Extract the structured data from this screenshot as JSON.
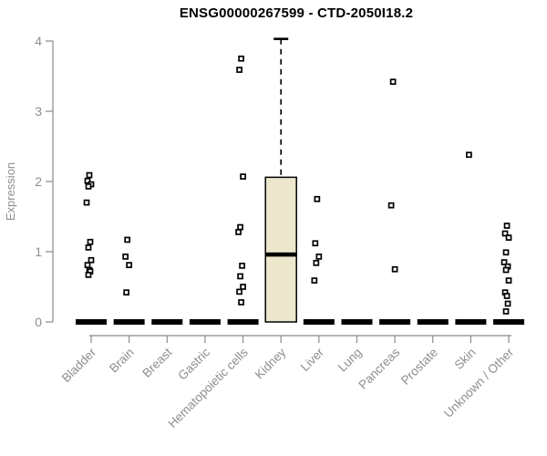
{
  "chart_data": {
    "type": "boxplot",
    "title": "ENSG00000267599 - CTD-2050I18.2",
    "ylabel": "Expression",
    "xlabel": "",
    "ylim": [
      0,
      4
    ],
    "yticks": [
      0,
      1,
      2,
      3,
      4
    ],
    "grid": false,
    "legend": false,
    "categories": [
      "Bladder",
      "Brain",
      "Breast",
      "Gastric",
      "Hematopoietic cells",
      "Kidney",
      "Liver",
      "Lung",
      "Pancreas",
      "Prostate",
      "Skin",
      "Unknown / Other"
    ],
    "boxes": [
      {
        "category": "Bladder",
        "q1": 0,
        "median": 0,
        "q3": 0,
        "whisker_low": 0,
        "whisker_high": 0,
        "points": [
          2.09,
          2.01,
          1.96,
          1.93,
          1.7,
          1.14,
          1.06,
          0.88,
          0.81,
          0.74,
          0.72,
          0.67
        ]
      },
      {
        "category": "Brain",
        "q1": 0,
        "median": 0,
        "q3": 0,
        "whisker_low": 0,
        "whisker_high": 0,
        "points": [
          1.17,
          0.93,
          0.81,
          0.42
        ]
      },
      {
        "category": "Breast",
        "q1": 0,
        "median": 0,
        "q3": 0,
        "whisker_low": 0,
        "whisker_high": 0,
        "points": []
      },
      {
        "category": "Gastric",
        "q1": 0,
        "median": 0,
        "q3": 0,
        "whisker_low": 0,
        "whisker_high": 0,
        "points": []
      },
      {
        "category": "Hematopoietic cells",
        "q1": 0,
        "median": 0,
        "q3": 0,
        "whisker_low": 0,
        "whisker_high": 0,
        "points": [
          3.75,
          3.59,
          2.07,
          1.35,
          1.28,
          0.8,
          0.65,
          0.5,
          0.43,
          0.28
        ]
      },
      {
        "category": "Kidney",
        "q1": 0,
        "median": 0.96,
        "q3": 2.06,
        "whisker_low": 0,
        "whisker_high": 4.03,
        "points": []
      },
      {
        "category": "Liver",
        "q1": 0,
        "median": 0,
        "q3": 0,
        "whisker_low": 0,
        "whisker_high": 0,
        "points": [
          1.75,
          1.12,
          0.93,
          0.84,
          0.59
        ]
      },
      {
        "category": "Lung",
        "q1": 0,
        "median": 0,
        "q3": 0,
        "whisker_low": 0,
        "whisker_high": 0,
        "points": []
      },
      {
        "category": "Pancreas",
        "q1": 0,
        "median": 0,
        "q3": 0,
        "whisker_low": 0,
        "whisker_high": 0,
        "points": [
          3.42,
          1.66,
          0.75
        ]
      },
      {
        "category": "Prostate",
        "q1": 0,
        "median": 0,
        "q3": 0,
        "whisker_low": 0,
        "whisker_high": 0,
        "points": []
      },
      {
        "category": "Skin",
        "q1": 0,
        "median": 0,
        "q3": 0,
        "whisker_low": 0,
        "whisker_high": 0,
        "points": [
          2.38
        ]
      },
      {
        "category": "Unknown / Other",
        "q1": 0,
        "median": 0,
        "q3": 0,
        "whisker_low": 0,
        "whisker_high": 0,
        "points": [
          1.37,
          1.26,
          1.2,
          0.99,
          0.85,
          0.79,
          0.74,
          0.59,
          0.42,
          0.37,
          0.26,
          0.15
        ]
      }
    ],
    "colors": {
      "box_fill": "#ece7cd",
      "box_border": "#000000",
      "median": "#000000",
      "whisker": "#000000",
      "point_stroke": "#000000",
      "point_fill": "#ffffff",
      "axis_line": "#8a8a8a",
      "tick_label": "#8e8e8e",
      "title": "#000000",
      "background": "#ffffff"
    }
  }
}
